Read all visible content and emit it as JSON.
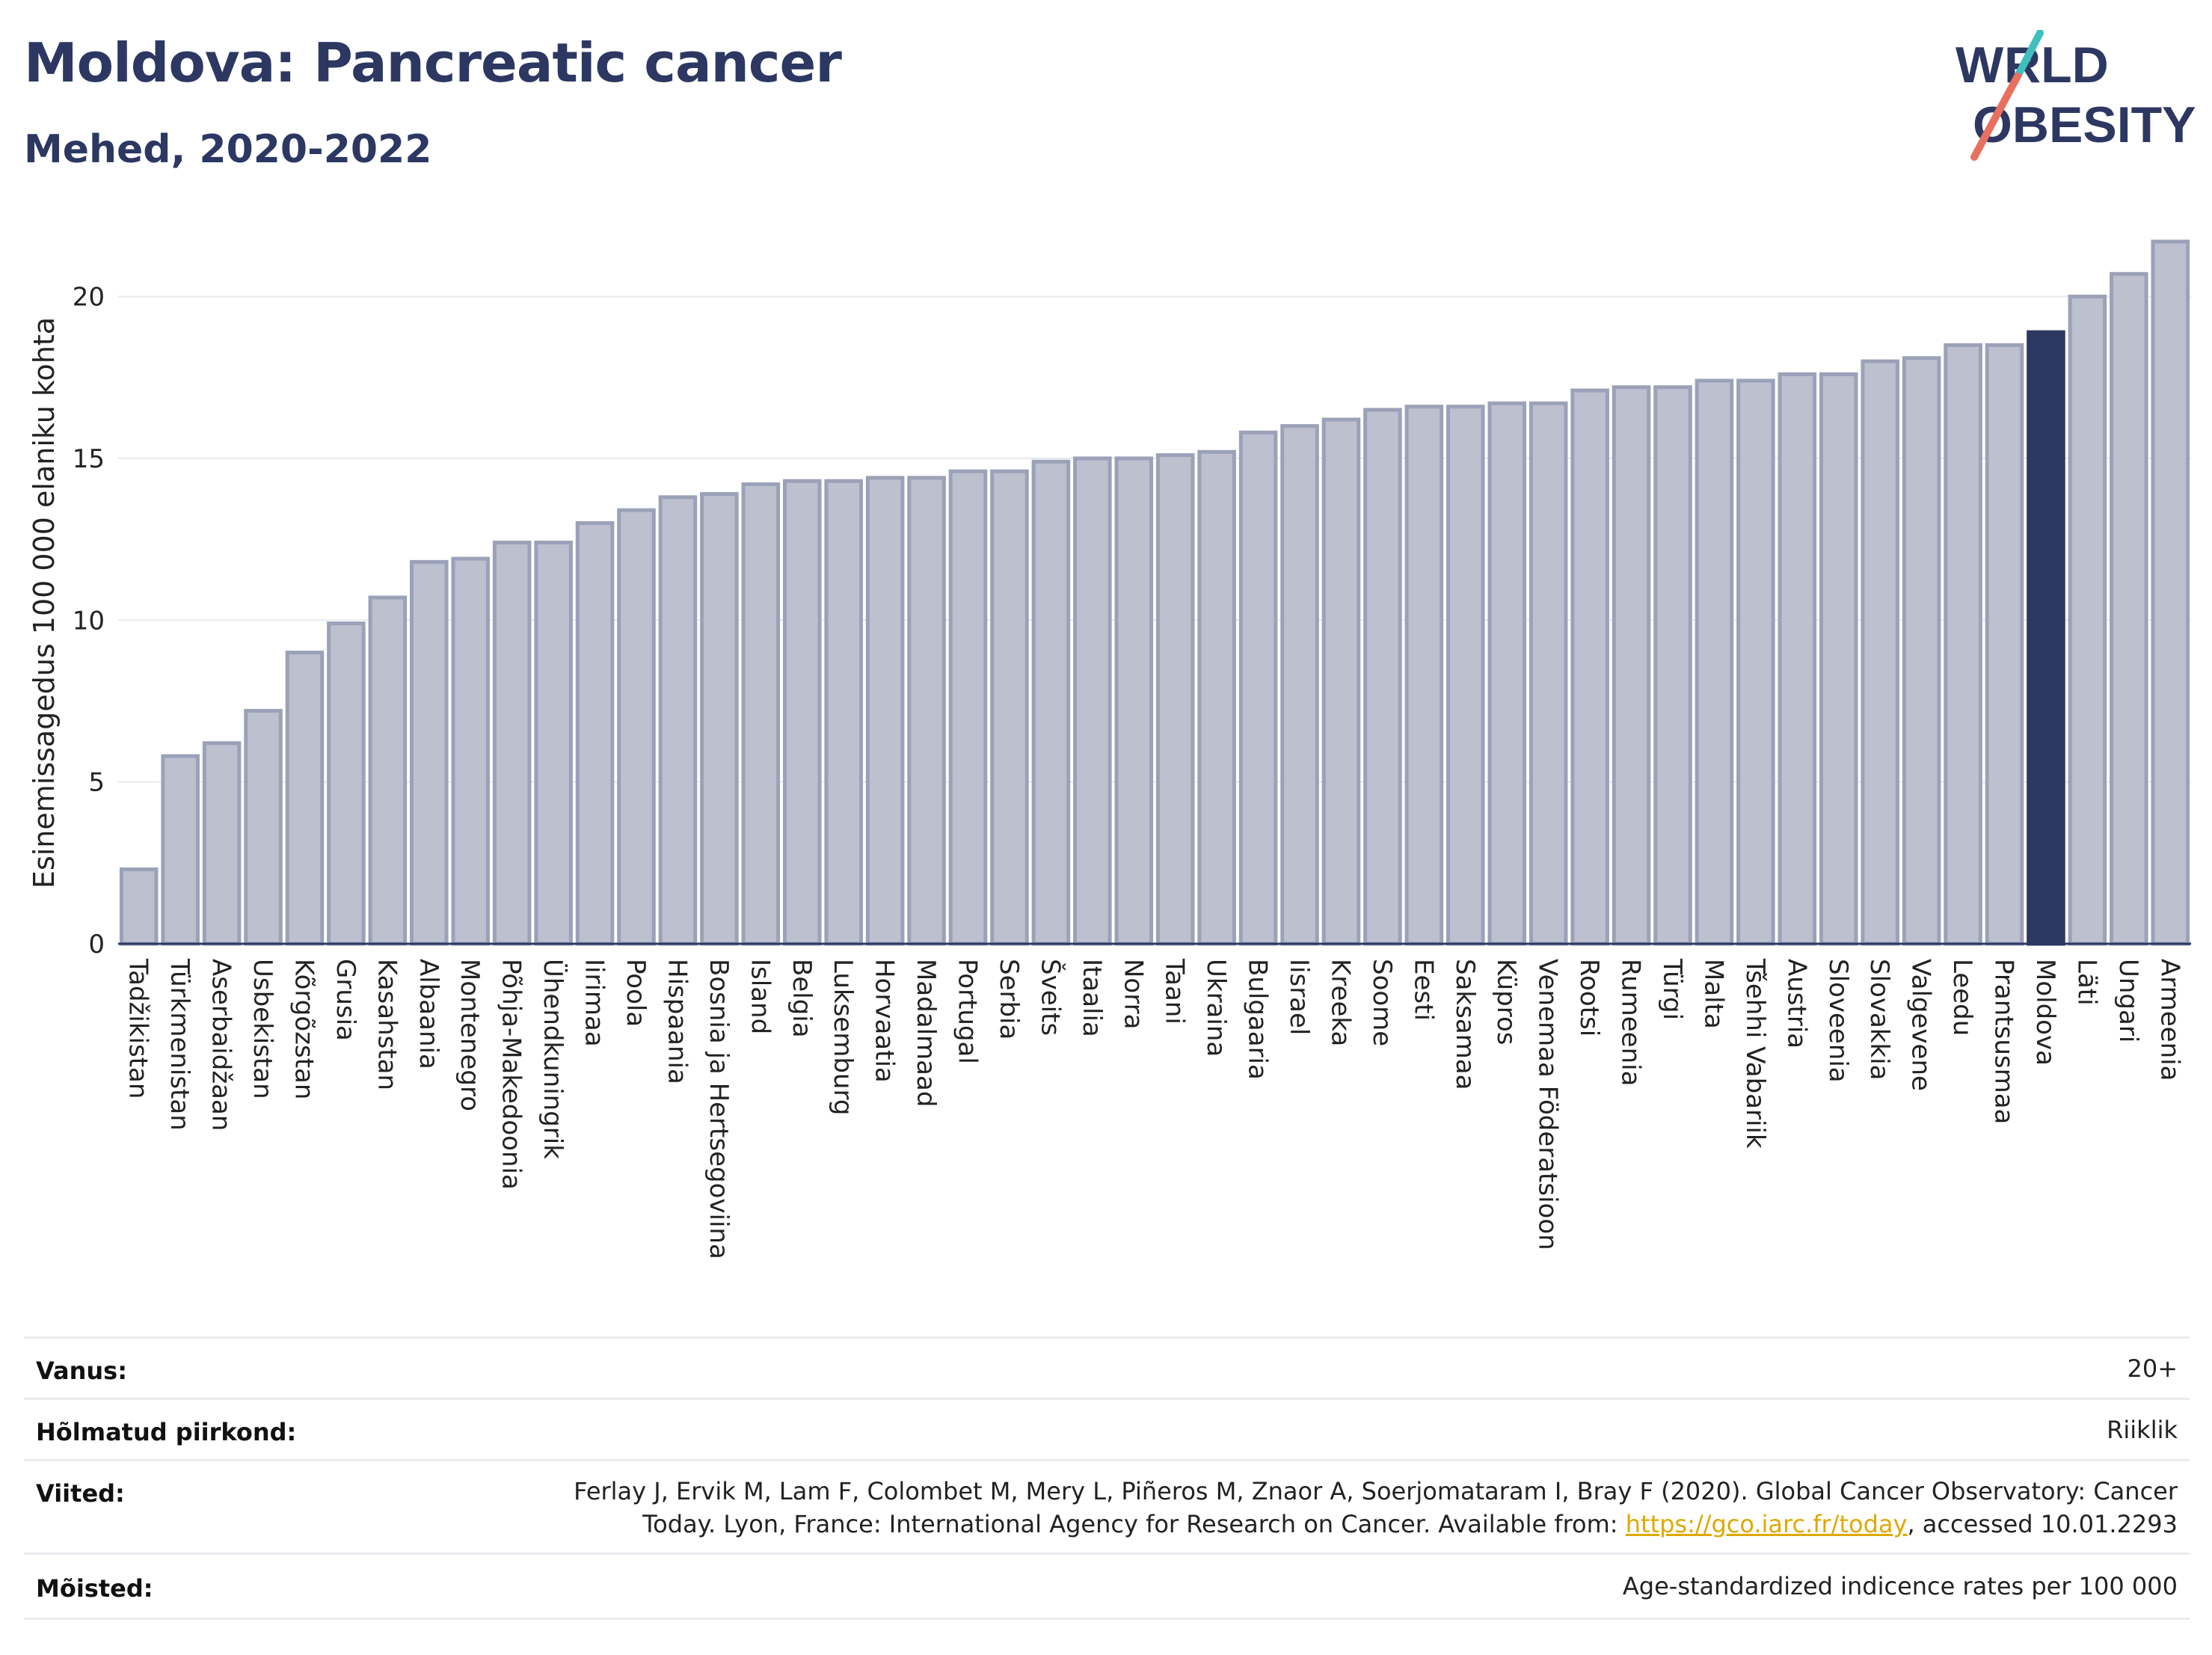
{
  "header": {
    "title": "Moldova: Pancreatic cancer",
    "subtitle": "Mehed, 2020-2022"
  },
  "logo": {
    "line1": "WORLD",
    "line2": "OBESITY"
  },
  "chart_data": {
    "type": "bar",
    "ylabel": "Esinemissagedus 100 000 elaniku kohta",
    "xlabel": "",
    "ylim": [
      0,
      22
    ],
    "yticks": [
      0,
      5,
      10,
      15,
      20
    ],
    "grid": true,
    "highlight": "Moldova",
    "colors": {
      "bar": "#bcc0cf",
      "bar_edge": "#9ba1b8",
      "highlight": "#2c3862"
    },
    "categories": [
      "Tadžikistan",
      "Türkmenistan",
      "Aserbaidžaan",
      "Usbekistan",
      "Kõrgõzstan",
      "Grusia",
      "Kasahstan",
      "Albaania",
      "Montenegro",
      "Põhja-Makedoonia",
      "Ühendkuningrik",
      "Iirimaa",
      "Poola",
      "Hispaania",
      "Bosnia ja Hertsegoviina",
      "Island",
      "Belgia",
      "Luksemburg",
      "Horvaatia",
      "Madalmaad",
      "Portugal",
      "Serbia",
      "Šveits",
      "Itaalia",
      "Norra",
      "Taani",
      "Ukraina",
      "Bulgaaria",
      "Iisrael",
      "Kreeka",
      "Soome",
      "Eesti",
      "Saksamaa",
      "Küpros",
      "Venemaa Föderatsioon",
      "Rootsi",
      "Rumeenia",
      "Türgi",
      "Malta",
      "Tšehhi Vabariik",
      "Austria",
      "Sloveenia",
      "Slovakkia",
      "Valgevene",
      "Leedu",
      "Prantsusmaa",
      "Moldova",
      "Läti",
      "Ungari",
      "Armeenia"
    ],
    "values": [
      2.3,
      5.8,
      6.2,
      7.2,
      9.0,
      9.9,
      10.7,
      11.8,
      11.9,
      12.4,
      12.4,
      13.0,
      13.4,
      13.8,
      13.9,
      14.2,
      14.3,
      14.3,
      14.4,
      14.4,
      14.6,
      14.6,
      14.9,
      15.0,
      15.0,
      15.1,
      15.2,
      15.8,
      16.0,
      16.2,
      16.5,
      16.6,
      16.6,
      16.7,
      16.7,
      17.1,
      17.2,
      17.2,
      17.4,
      17.4,
      17.6,
      17.6,
      18.0,
      18.1,
      18.5,
      18.5,
      18.9,
      20.0,
      20.7,
      21.7
    ]
  },
  "info": {
    "rows": [
      {
        "label": "Vanus:",
        "value": "20+"
      },
      {
        "label": "Hõlmatud piirkond:",
        "value": "Riiklik"
      },
      {
        "label": "Viited:",
        "value_line1": "Ferlay J, Ervik M, Lam F, Colombet M, Mery L, Piñeros M, Znaor A, Soerjomataram I, Bray F (2020). Global Cancer Observatory: Cancer",
        "value_line2_pre": "Today. Lyon, France: International Agency for Research on Cancer. Available from: ",
        "link": "https://gco.iarc.fr/today",
        "value_line2_post": ", accessed 10.01.2293"
      },
      {
        "label": "Mõisted:",
        "value": "Age-standardized indicence rates per 100 000"
      }
    ]
  }
}
